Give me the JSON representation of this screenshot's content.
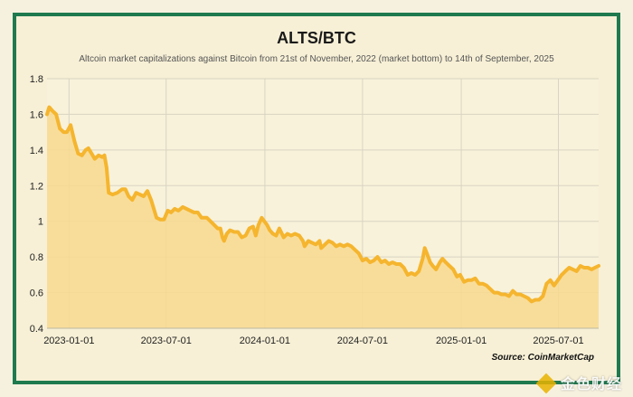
{
  "chart_data": {
    "type": "area",
    "title": "ALTS/BTC",
    "subtitle": "Altcoin market capitalizations against Bitcoin from 21st of November, 2022 (market bottom) to 14th of September, 2025",
    "source": "Source: CoinMarketCap",
    "xlabel": "",
    "ylabel": "",
    "ylim": [
      0.4,
      1.8
    ],
    "yticks": [
      "0.4",
      "0.6",
      "0.8",
      "1",
      "1.2",
      "1.4",
      "1.6",
      "1.8"
    ],
    "xticks": [
      {
        "date": "2023-01-01",
        "label": "2023-01-01"
      },
      {
        "date": "2023-07-01",
        "label": "2023-07-01"
      },
      {
        "date": "2024-01-01",
        "label": "2024-01-01"
      },
      {
        "date": "2024-07-01",
        "label": "2024-07-01"
      },
      {
        "date": "2025-01-01",
        "label": "2025-01-01"
      },
      {
        "date": "2025-07-01",
        "label": "2025-07-01"
      }
    ],
    "xrange": [
      "2022-11-21",
      "2025-09-14"
    ],
    "grid": true,
    "line_color": "#f5b52e",
    "fill_color": "#f8d98e",
    "points": [
      [
        "2022-11-21",
        1.6
      ],
      [
        "2022-11-25",
        1.64
      ],
      [
        "2022-12-01",
        1.62
      ],
      [
        "2022-12-08",
        1.6
      ],
      [
        "2022-12-15",
        1.52
      ],
      [
        "2022-12-22",
        1.5
      ],
      [
        "2022-12-28",
        1.5
      ],
      [
        "2023-01-04",
        1.54
      ],
      [
        "2023-01-11",
        1.45
      ],
      [
        "2023-01-18",
        1.38
      ],
      [
        "2023-01-25",
        1.37
      ],
      [
        "2023-02-01",
        1.4
      ],
      [
        "2023-02-06",
        1.41
      ],
      [
        "2023-02-12",
        1.38
      ],
      [
        "2023-02-18",
        1.35
      ],
      [
        "2023-02-25",
        1.37
      ],
      [
        "2023-03-04",
        1.36
      ],
      [
        "2023-03-08",
        1.37
      ],
      [
        "2023-03-12",
        1.3
      ],
      [
        "2023-03-16",
        1.16
      ],
      [
        "2023-03-23",
        1.15
      ],
      [
        "2023-04-01",
        1.16
      ],
      [
        "2023-04-10",
        1.18
      ],
      [
        "2023-04-16",
        1.18
      ],
      [
        "2023-04-22",
        1.14
      ],
      [
        "2023-04-29",
        1.12
      ],
      [
        "2023-05-06",
        1.16
      ],
      [
        "2023-05-13",
        1.15
      ],
      [
        "2023-05-20",
        1.14
      ],
      [
        "2023-05-27",
        1.17
      ],
      [
        "2023-06-03",
        1.12
      ],
      [
        "2023-06-08",
        1.07
      ],
      [
        "2023-06-13",
        1.02
      ],
      [
        "2023-06-20",
        1.01
      ],
      [
        "2023-06-27",
        1.01
      ],
      [
        "2023-07-04",
        1.06
      ],
      [
        "2023-07-10",
        1.05
      ],
      [
        "2023-07-17",
        1.07
      ],
      [
        "2023-07-24",
        1.06
      ],
      [
        "2023-08-01",
        1.08
      ],
      [
        "2023-08-08",
        1.07
      ],
      [
        "2023-08-15",
        1.06
      ],
      [
        "2023-08-22",
        1.05
      ],
      [
        "2023-08-29",
        1.05
      ],
      [
        "2023-09-05",
        1.02
      ],
      [
        "2023-09-15",
        1.02
      ],
      [
        "2023-09-25",
        0.99
      ],
      [
        "2023-10-05",
        0.96
      ],
      [
        "2023-10-10",
        0.96
      ],
      [
        "2023-10-14",
        0.91
      ],
      [
        "2023-10-17",
        0.89
      ],
      [
        "2023-10-22",
        0.93
      ],
      [
        "2023-10-28",
        0.95
      ],
      [
        "2023-11-05",
        0.94
      ],
      [
        "2023-11-12",
        0.94
      ],
      [
        "2023-11-19",
        0.91
      ],
      [
        "2023-11-26",
        0.92
      ],
      [
        "2023-12-03",
        0.96
      ],
      [
        "2023-12-10",
        0.97
      ],
      [
        "2023-12-15",
        0.92
      ],
      [
        "2023-12-20",
        0.98
      ],
      [
        "2023-12-26",
        1.02
      ],
      [
        "2023-12-31",
        1.0
      ],
      [
        "2024-01-05",
        0.98
      ],
      [
        "2024-01-10",
        0.95
      ],
      [
        "2024-01-16",
        0.93
      ],
      [
        "2024-01-22",
        0.92
      ],
      [
        "2024-01-28",
        0.96
      ],
      [
        "2024-02-05",
        0.91
      ],
      [
        "2024-02-12",
        0.93
      ],
      [
        "2024-02-19",
        0.92
      ],
      [
        "2024-02-26",
        0.93
      ],
      [
        "2024-03-05",
        0.92
      ],
      [
        "2024-03-12",
        0.89
      ],
      [
        "2024-03-15",
        0.86
      ],
      [
        "2024-03-22",
        0.89
      ],
      [
        "2024-03-29",
        0.88
      ],
      [
        "2024-04-05",
        0.87
      ],
      [
        "2024-04-12",
        0.89
      ],
      [
        "2024-04-15",
        0.85
      ],
      [
        "2024-04-22",
        0.87
      ],
      [
        "2024-04-29",
        0.89
      ],
      [
        "2024-05-06",
        0.88
      ],
      [
        "2024-05-13",
        0.86
      ],
      [
        "2024-05-20",
        0.87
      ],
      [
        "2024-05-27",
        0.86
      ],
      [
        "2024-06-03",
        0.87
      ],
      [
        "2024-06-10",
        0.86
      ],
      [
        "2024-06-17",
        0.84
      ],
      [
        "2024-06-24",
        0.82
      ],
      [
        "2024-07-01",
        0.78
      ],
      [
        "2024-07-08",
        0.79
      ],
      [
        "2024-07-15",
        0.77
      ],
      [
        "2024-07-22",
        0.78
      ],
      [
        "2024-07-29",
        0.8
      ],
      [
        "2024-08-05",
        0.77
      ],
      [
        "2024-08-12",
        0.78
      ],
      [
        "2024-08-19",
        0.76
      ],
      [
        "2024-08-26",
        0.77
      ],
      [
        "2024-09-02",
        0.76
      ],
      [
        "2024-09-09",
        0.76
      ],
      [
        "2024-09-16",
        0.74
      ],
      [
        "2024-09-23",
        0.7
      ],
      [
        "2024-09-30",
        0.71
      ],
      [
        "2024-10-07",
        0.7
      ],
      [
        "2024-10-14",
        0.72
      ],
      [
        "2024-10-21",
        0.79
      ],
      [
        "2024-10-25",
        0.85
      ],
      [
        "2024-10-29",
        0.82
      ],
      [
        "2024-11-04",
        0.77
      ],
      [
        "2024-11-09",
        0.75
      ],
      [
        "2024-11-15",
        0.73
      ],
      [
        "2024-11-22",
        0.77
      ],
      [
        "2024-11-27",
        0.79
      ],
      [
        "2024-12-03",
        0.77
      ],
      [
        "2024-12-10",
        0.75
      ],
      [
        "2024-12-17",
        0.73
      ],
      [
        "2024-12-24",
        0.69
      ],
      [
        "2024-12-30",
        0.7
      ],
      [
        "2025-01-06",
        0.66
      ],
      [
        "2025-01-13",
        0.67
      ],
      [
        "2025-01-20",
        0.67
      ],
      [
        "2025-01-27",
        0.68
      ],
      [
        "2025-02-03",
        0.65
      ],
      [
        "2025-02-10",
        0.65
      ],
      [
        "2025-02-17",
        0.64
      ],
      [
        "2025-02-24",
        0.62
      ],
      [
        "2025-03-03",
        0.6
      ],
      [
        "2025-03-10",
        0.6
      ],
      [
        "2025-03-17",
        0.59
      ],
      [
        "2025-03-24",
        0.59
      ],
      [
        "2025-03-31",
        0.58
      ],
      [
        "2025-04-07",
        0.61
      ],
      [
        "2025-04-14",
        0.59
      ],
      [
        "2025-04-21",
        0.59
      ],
      [
        "2025-04-28",
        0.58
      ],
      [
        "2025-05-05",
        0.57
      ],
      [
        "2025-05-12",
        0.55
      ],
      [
        "2025-05-19",
        0.56
      ],
      [
        "2025-05-26",
        0.56
      ],
      [
        "2025-06-02",
        0.58
      ],
      [
        "2025-06-09",
        0.65
      ],
      [
        "2025-06-16",
        0.67
      ],
      [
        "2025-06-23",
        0.64
      ],
      [
        "2025-06-30",
        0.67
      ],
      [
        "2025-07-07",
        0.7
      ],
      [
        "2025-07-14",
        0.72
      ],
      [
        "2025-07-21",
        0.74
      ],
      [
        "2025-07-28",
        0.73
      ],
      [
        "2025-08-04",
        0.72
      ],
      [
        "2025-08-11",
        0.75
      ],
      [
        "2025-08-18",
        0.74
      ],
      [
        "2025-08-25",
        0.74
      ],
      [
        "2025-09-01",
        0.73
      ],
      [
        "2025-09-07",
        0.74
      ],
      [
        "2025-09-14",
        0.75
      ]
    ]
  },
  "watermark": "金色财经"
}
